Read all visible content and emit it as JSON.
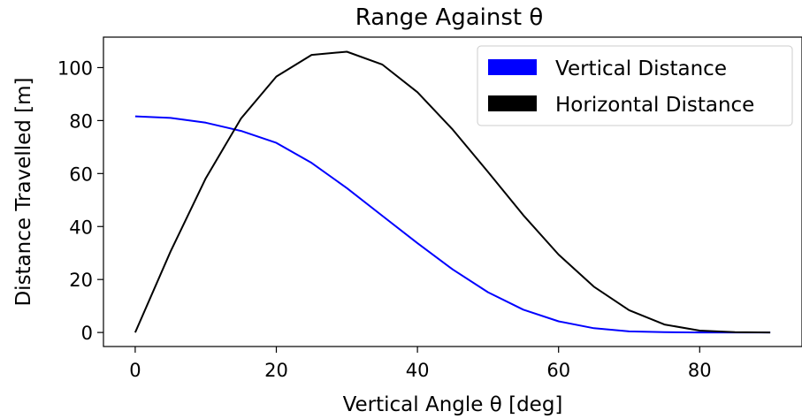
{
  "chart_data": {
    "type": "line",
    "title": "Range Against θ",
    "xlabel": "Vertical Angle θ [deg]",
    "ylabel": "Distance Travelled [m]",
    "xlim": [
      -4.5,
      94.5
    ],
    "ylim": [
      -5.3,
      111.5
    ],
    "xticks": [
      0,
      20,
      40,
      60,
      80
    ],
    "yticks": [
      0,
      20,
      40,
      60,
      80,
      100
    ],
    "grid": false,
    "legend_position": "top-right",
    "x": [
      0,
      5,
      10,
      15,
      20,
      25,
      30,
      35,
      40,
      45,
      50,
      55,
      60,
      65,
      70,
      75,
      80,
      85,
      90
    ],
    "series": [
      {
        "name": "Vertical Distance",
        "color": "#0000ff",
        "values": [
          81.6,
          81.0,
          79.2,
          76.1,
          71.6,
          64.0,
          54.5,
          44.1,
          33.7,
          23.8,
          15.2,
          8.6,
          4.2,
          1.6,
          0.4,
          0.1,
          0.0,
          0.0,
          0.0
        ]
      },
      {
        "name": "Horizontal Distance",
        "color": "#000000",
        "values": [
          0.0,
          30.5,
          58.2,
          80.8,
          96.6,
          104.8,
          106.0,
          101.2,
          90.7,
          76.6,
          60.6,
          44.3,
          29.4,
          17.3,
          8.4,
          3.0,
          0.7,
          0.1,
          0.0
        ]
      }
    ]
  }
}
